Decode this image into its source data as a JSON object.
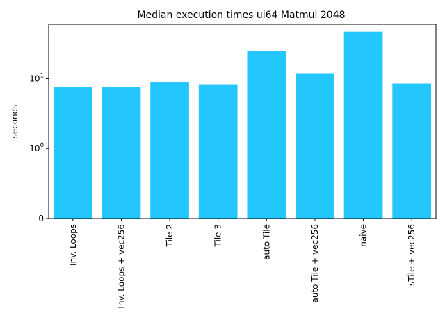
{
  "chart_data": {
    "type": "bar",
    "title": "Median execution times ui64 Matmul 2048",
    "xlabel": "",
    "ylabel": "seconds",
    "yscale": "symlog",
    "ylim": [
      0,
      60
    ],
    "yticks": [
      {
        "value": 0,
        "base": "0",
        "exp": ""
      },
      {
        "value": 1,
        "base": "10",
        "exp": "0"
      },
      {
        "value": 10,
        "base": "10",
        "exp": "1"
      }
    ],
    "grid": false,
    "bar_color": "#24c6fe",
    "categories": [
      "Inv. Loops",
      "Inv. Loops + vec256",
      "Tile 2",
      "Tile 3",
      "auto Tile",
      "auto Tile + vec256",
      "naive",
      "sTile + vec256"
    ],
    "values": [
      7.5,
      7.5,
      9.0,
      8.3,
      25.0,
      12.0,
      47.0,
      8.5
    ]
  }
}
